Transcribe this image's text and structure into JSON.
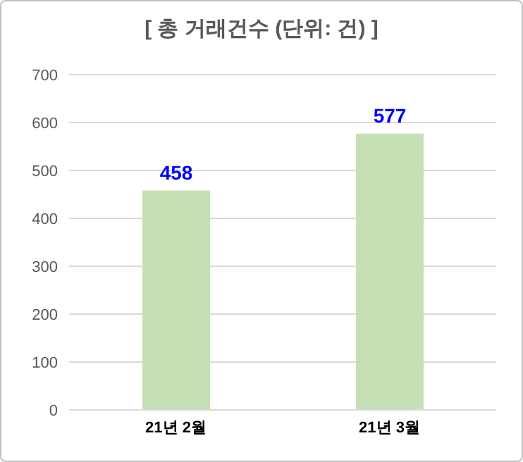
{
  "chart_data": {
    "type": "bar",
    "title": "[ 총 거래건수 (단위: 건) ]",
    "categories": [
      "21년 2월",
      "21년 3월"
    ],
    "values": [
      458,
      577
    ],
    "color": "#c5e0b4",
    "ylim": [
      0,
      700
    ],
    "yticks": [
      0,
      100,
      200,
      300,
      400,
      500,
      600,
      700
    ],
    "grid": "y",
    "data_labels": true
  }
}
